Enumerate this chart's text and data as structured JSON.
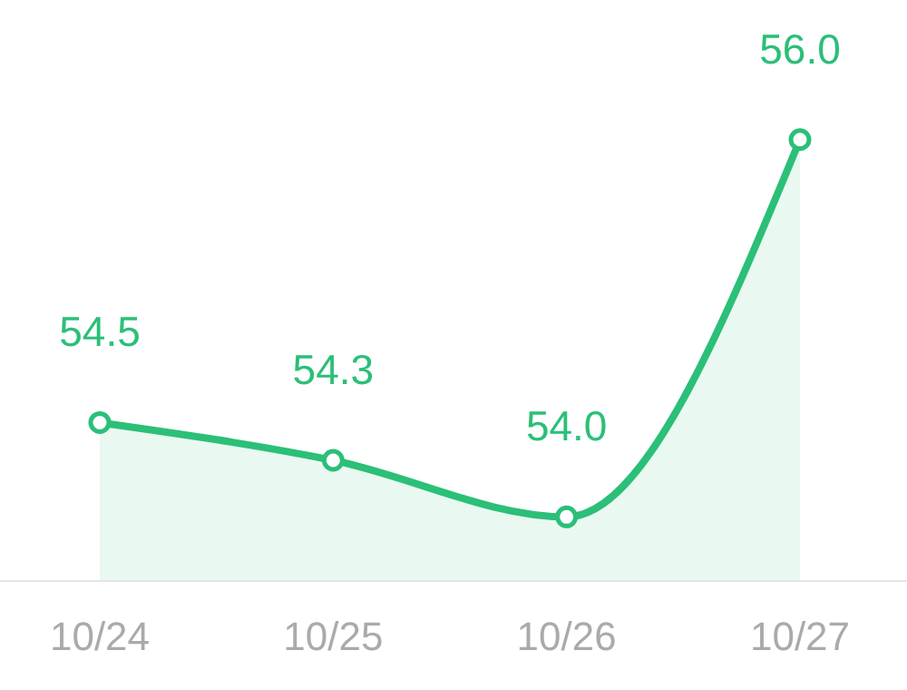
{
  "chart_data": {
    "type": "area",
    "categories": [
      "10/24",
      "10/25",
      "10/26",
      "10/27"
    ],
    "values": [
      54.5,
      54.3,
      54.0,
      56.0
    ],
    "value_labels": [
      "54.5",
      "54.3",
      "54.0",
      "56.0"
    ],
    "color": "#2bbf78",
    "marker": "circle",
    "grid": false
  }
}
